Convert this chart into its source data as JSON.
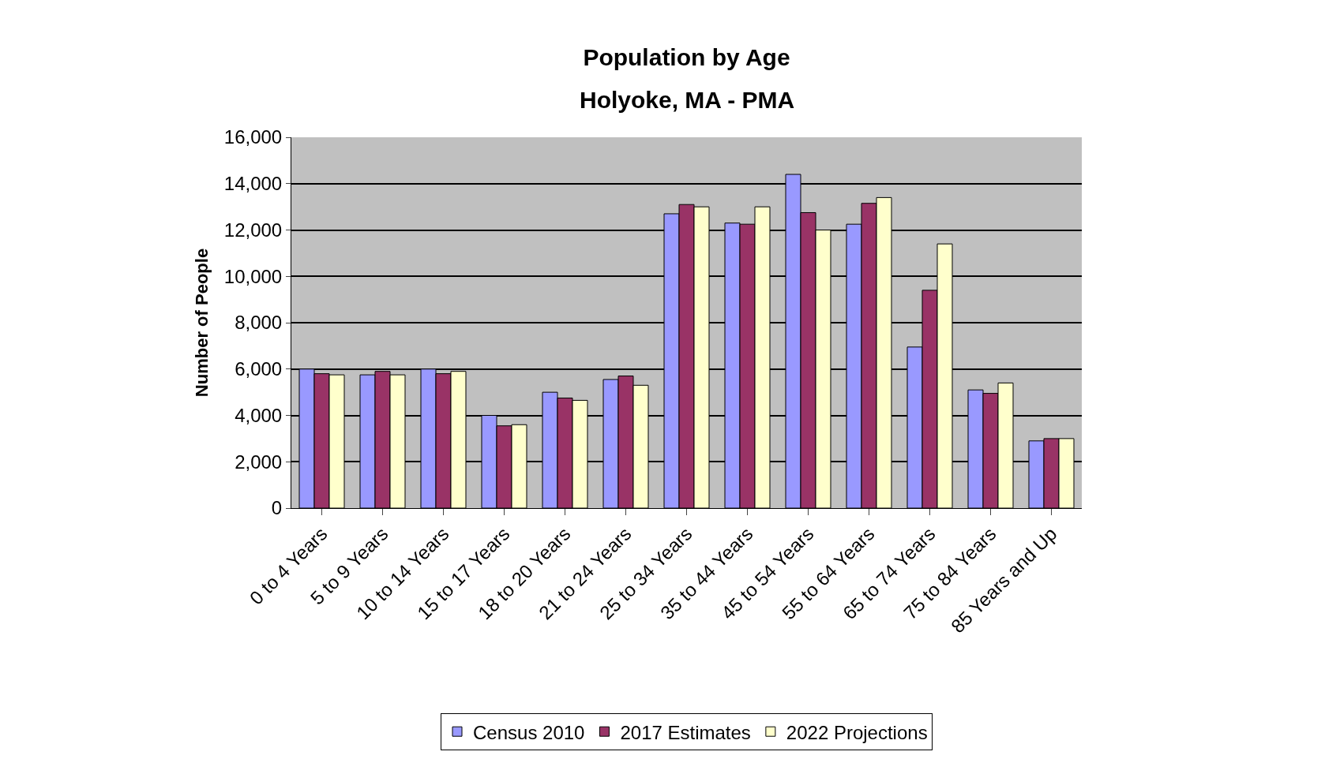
{
  "chart_data": {
    "type": "bar",
    "title": "Population by Age",
    "subtitle": "Holyoke, MA - PMA",
    "ylabel": "Number of People",
    "categories": [
      "0 to 4 Years",
      "5 to 9 Years",
      "10 to 14 Years",
      "15 to 17 Years",
      "18 to 20 Years",
      "21 to 24 Years",
      "25 to 34 Years",
      "35 to 44 Years",
      "45 to 54 Years",
      "55 to 64 Years",
      "65 to 74 Years",
      "75 to 84 Years",
      "85 Years and Up"
    ],
    "series": [
      {
        "name": "Census 2010",
        "color": "#9999ff",
        "values": [
          6000,
          5750,
          6000,
          4000,
          5000,
          5550,
          12700,
          12300,
          14400,
          12250,
          6950,
          5100,
          2900
        ]
      },
      {
        "name": "2017 Estimates",
        "color": "#993366",
        "values": [
          5800,
          5900,
          5800,
          3550,
          4750,
          5700,
          13100,
          12250,
          12750,
          13150,
          9400,
          4950,
          3000
        ]
      },
      {
        "name": "2022 Projections",
        "color": "#ffffcc",
        "values": [
          5750,
          5750,
          5900,
          3600,
          4650,
          5300,
          13000,
          13000,
          12000,
          13400,
          11400,
          5400,
          3000
        ]
      }
    ],
    "ylim": [
      0,
      16000
    ],
    "yticks": [
      0,
      {
        "value": 2000,
        "label": "2,000"
      },
      {
        "value": 4000,
        "label": "4,000"
      },
      {
        "value": 6000,
        "label": "6,000"
      },
      {
        "value": 8000,
        "label": "8,000"
      },
      {
        "value": 10000,
        "label": "10,000"
      },
      {
        "value": 12000,
        "label": "12,000"
      },
      {
        "value": 14000,
        "label": "14,000"
      },
      {
        "value": 16000,
        "label": "16,000"
      }
    ],
    "grid": "y",
    "legend": "bottom"
  }
}
